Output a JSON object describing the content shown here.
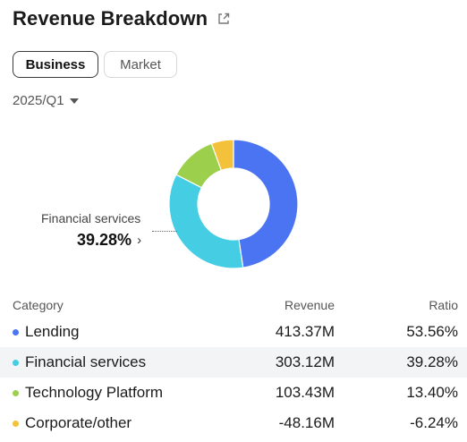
{
  "header": {
    "title": "Revenue Breakdown",
    "share_icon": "share-icon"
  },
  "tabs": [
    {
      "label": "Business",
      "active": true
    },
    {
      "label": "Market",
      "active": false
    }
  ],
  "period": {
    "label": "2025/Q1",
    "icon": "chevron-down-icon"
  },
  "callout": {
    "label": "Financial services",
    "value": "39.28%",
    "icon": "chevron-right-icon"
  },
  "table": {
    "headers": {
      "category": "Category",
      "revenue": "Revenue",
      "ratio": "Ratio"
    },
    "rows": [
      {
        "category": "Lending",
        "revenue": "413.37M",
        "ratio": "53.56%",
        "color": "#4a74f2"
      },
      {
        "category": "Financial services",
        "revenue": "303.12M",
        "ratio": "39.28%",
        "color": "#44cde3"
      },
      {
        "category": "Technology Platform",
        "revenue": "103.43M",
        "ratio": "13.40%",
        "color": "#9ccf4c"
      },
      {
        "category": "Corporate/other",
        "revenue": "-48.16M",
        "ratio": "-6.24%",
        "color": "#f3c13a"
      }
    ]
  },
  "chart_data": {
    "type": "pie",
    "donut": true,
    "categories": [
      "Lending",
      "Financial services",
      "Technology Platform",
      "Corporate/other"
    ],
    "values": [
      413.37,
      303.12,
      103.43,
      -48.16
    ],
    "percentages": [
      53.56,
      39.28,
      13.4,
      -6.24
    ],
    "colors": [
      "#4a74f2",
      "#44cde3",
      "#9ccf4c",
      "#f3c13a"
    ],
    "selected": "Financial services"
  }
}
